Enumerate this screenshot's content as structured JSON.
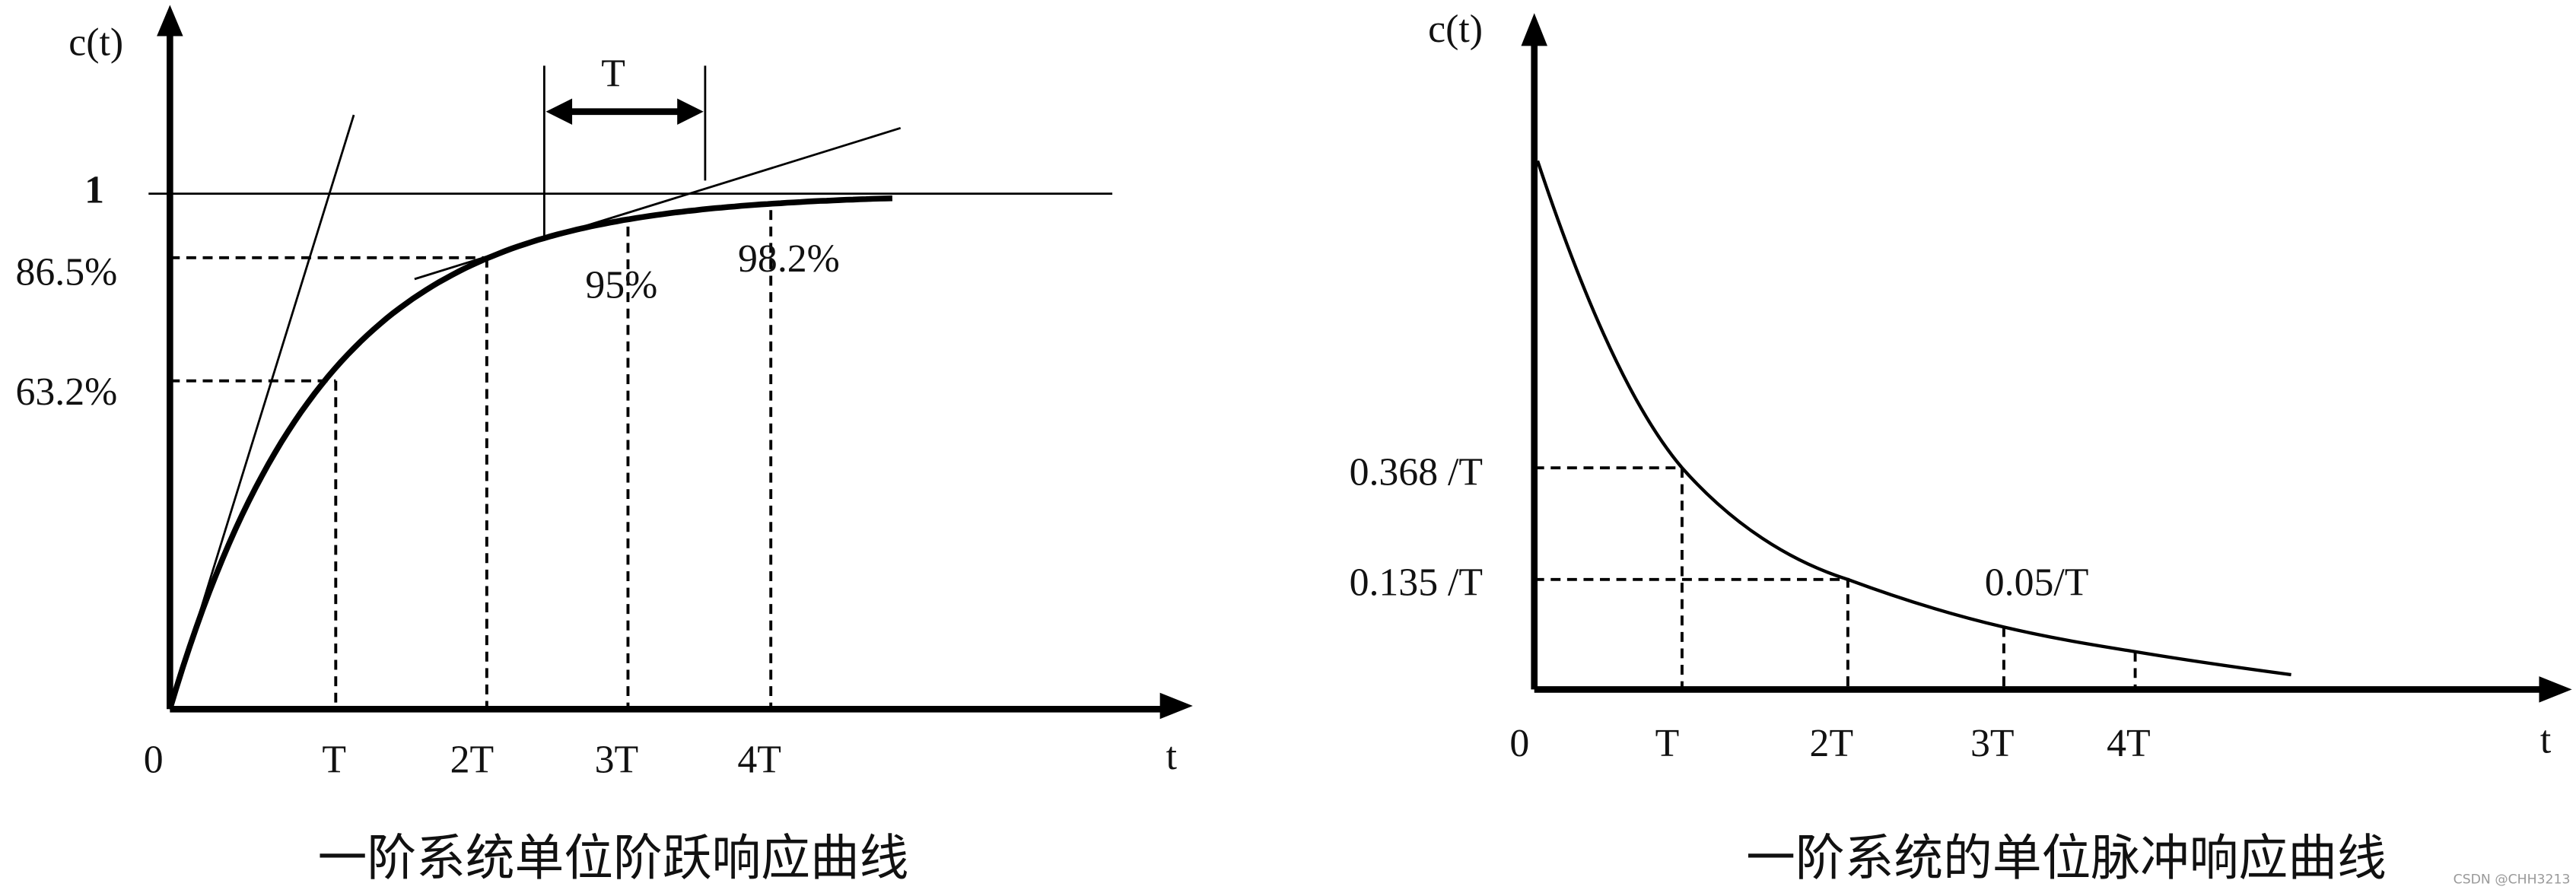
{
  "step_response": {
    "axis_y": "c(t)",
    "axis_x": "t",
    "level_one": "1",
    "labels": [
      "86.5%",
      "63.2%",
      "95%",
      "98.2%"
    ],
    "ticks": [
      "0",
      "T",
      "2T",
      "3T",
      "4T"
    ],
    "bracket": "T",
    "caption": "一阶系统单位阶跃响应曲线"
  },
  "impulse_response": {
    "axis_y": "c(t)",
    "axis_x": "t",
    "labels": [
      "0.368 /T",
      "0.135 /T",
      "0.05/T"
    ],
    "ticks": [
      "0",
      "T",
      "2T",
      "3T",
      "4T"
    ],
    "caption": "一阶系统的单位脉冲响应曲线"
  },
  "watermark": "CSDN @CHH3213"
}
